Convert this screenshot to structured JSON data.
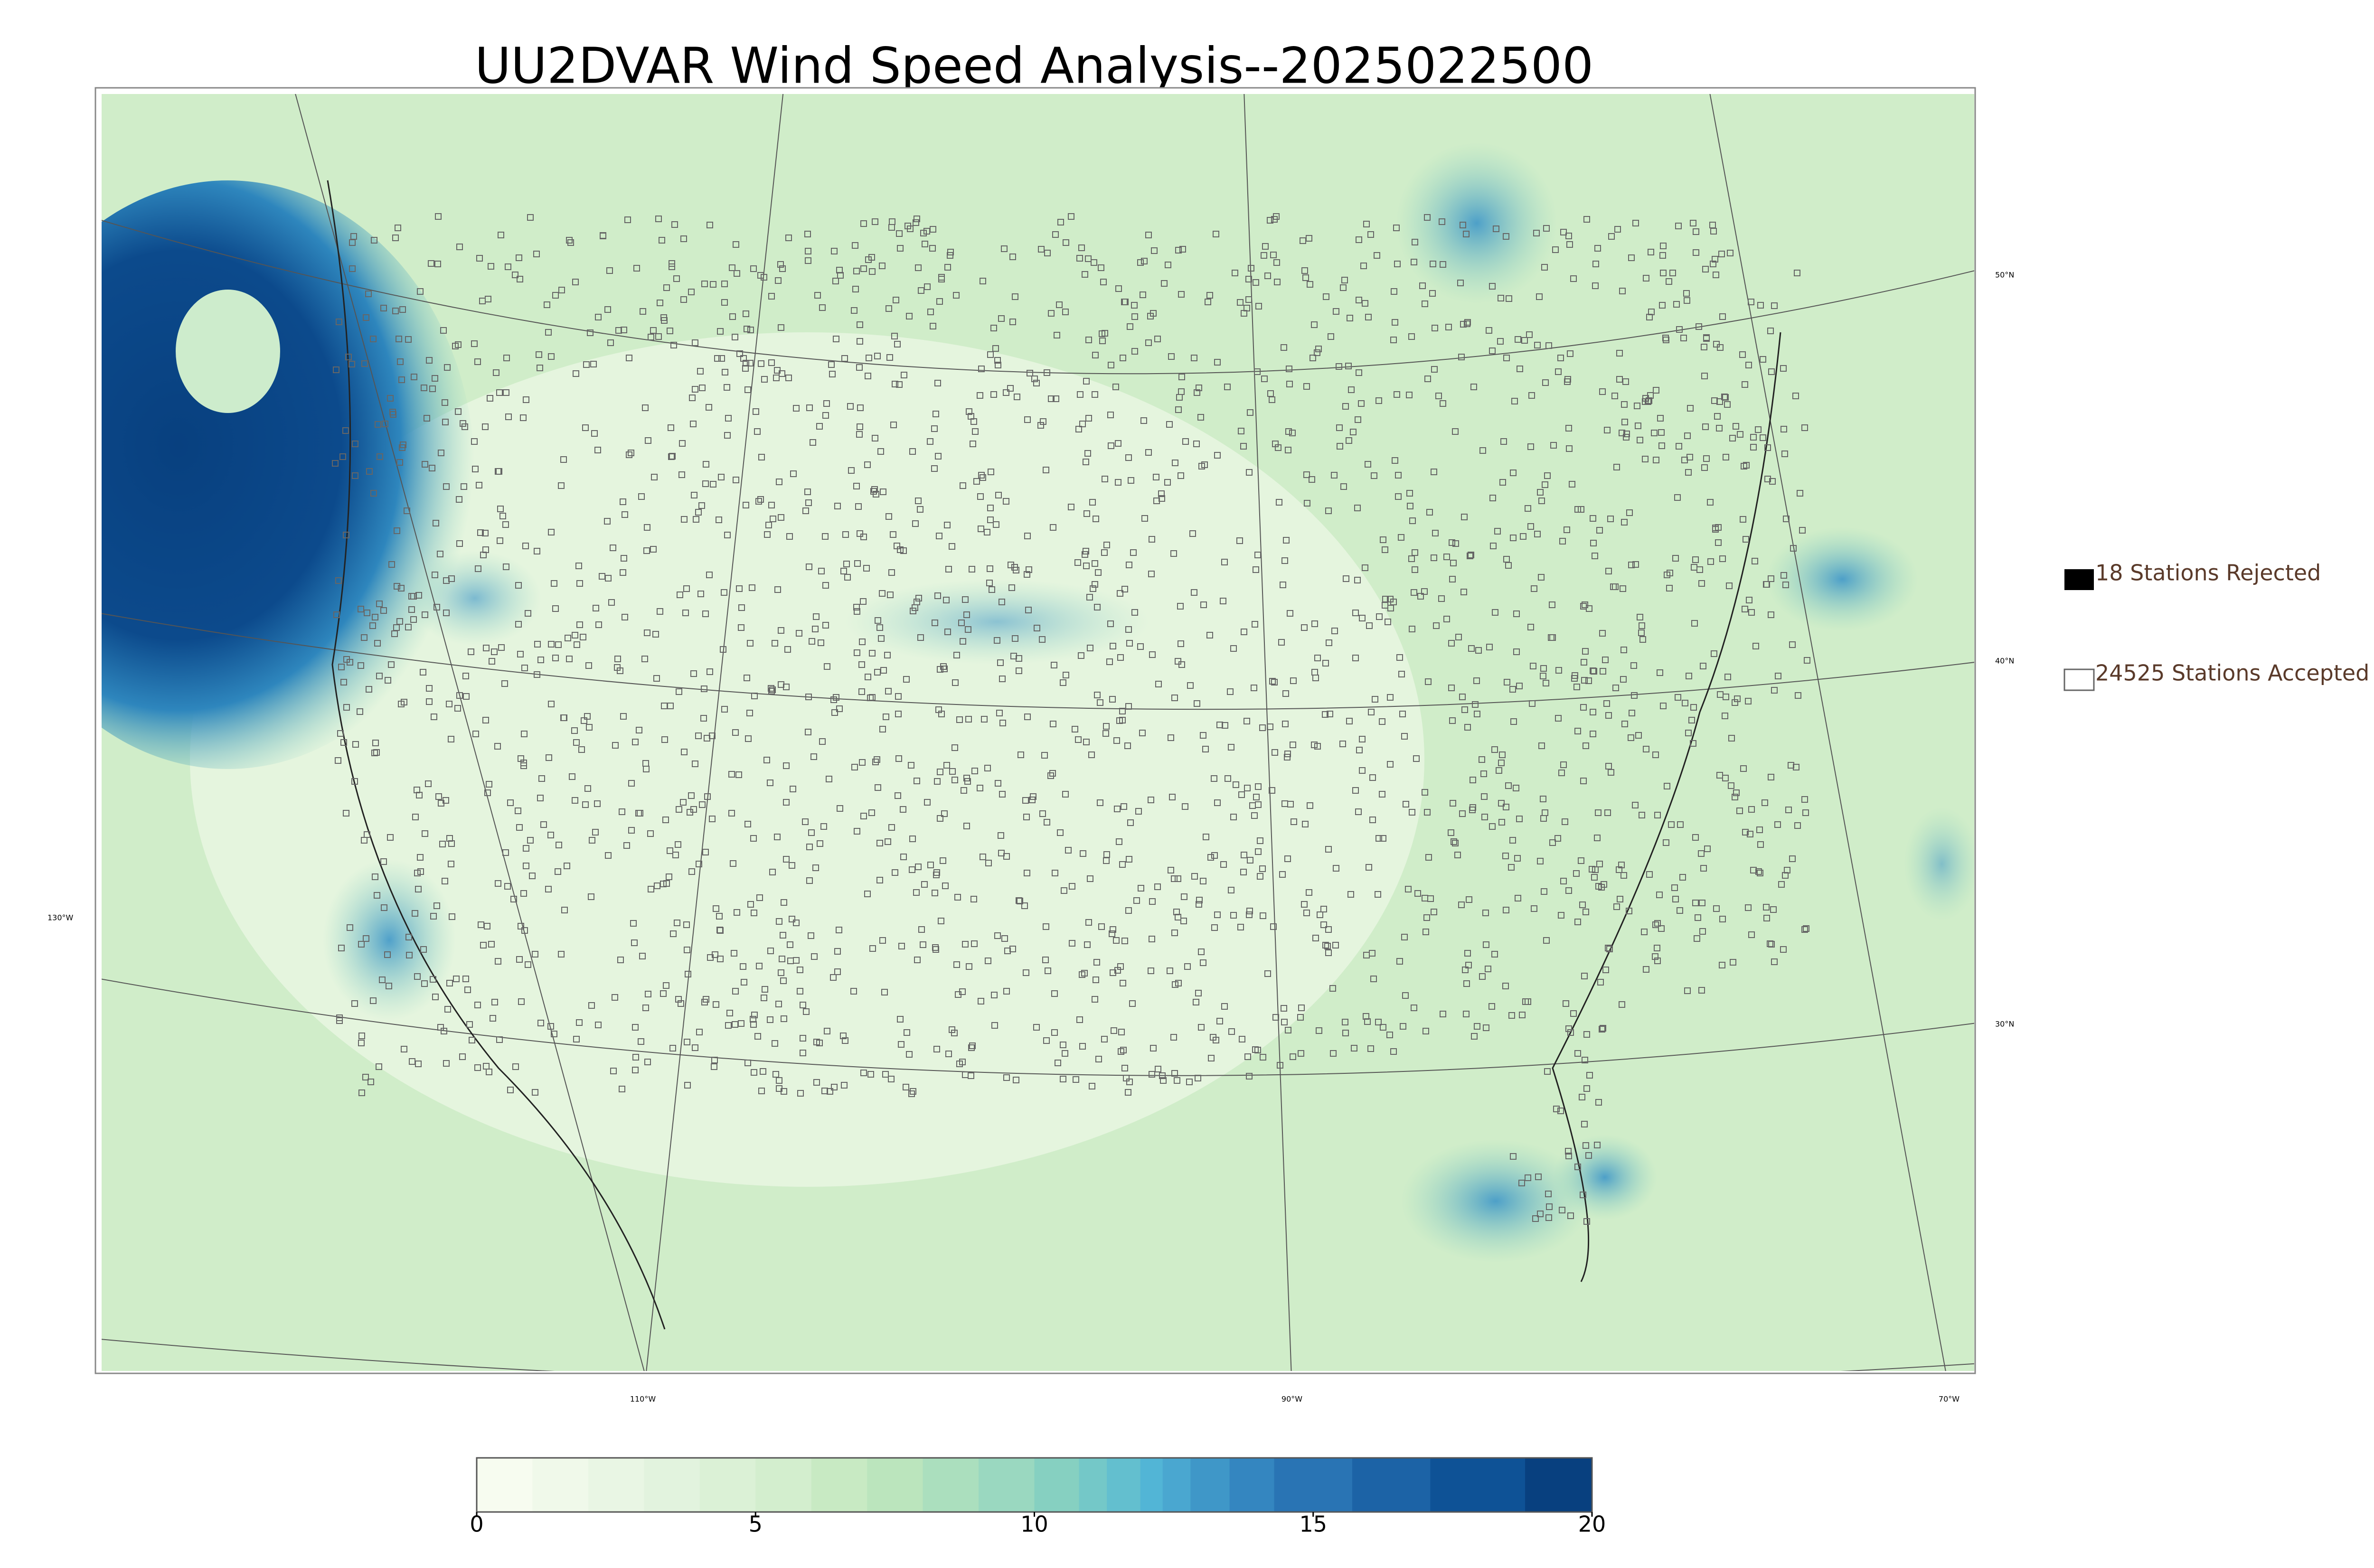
{
  "title": "UU2DVAR Wind Speed Analysis--2025022500",
  "legend": {
    "rejected": "18 Stations Rejected",
    "accepted": "24525 Stations Accepted"
  },
  "lat_labels": [
    "50°N",
    "40°N",
    "30°N"
  ],
  "lon_labels": [
    "130°W",
    "110°W",
    "90°W",
    "70°W"
  ],
  "colorbar": {
    "lim": [
      0,
      20
    ],
    "ticks": [
      0,
      5,
      10,
      15,
      20
    ],
    "bounds": [
      0,
      1,
      2,
      3,
      4,
      5,
      6,
      7,
      8,
      9,
      10,
      10.8,
      11.3,
      11.9,
      12.3,
      12.8,
      13.5,
      14.3,
      15.7,
      17.1,
      18.8,
      20
    ],
    "colors": [
      "#f7fcf0",
      "#f0f9ea",
      "#e9f6e4",
      "#e2f3de",
      "#dbf1d6",
      "#d3eece",
      "#c8eac3",
      "#bbe5bd",
      "#abdfbe",
      "#9ad8c0",
      "#86d0c1",
      "#74c8c8",
      "#63bfcf",
      "#52b5d6",
      "#4aa7d0",
      "#3f97c8",
      "#3486c0",
      "#2974b4",
      "#1c63a6",
      "#0e5296",
      "#08407f"
    ]
  }
}
